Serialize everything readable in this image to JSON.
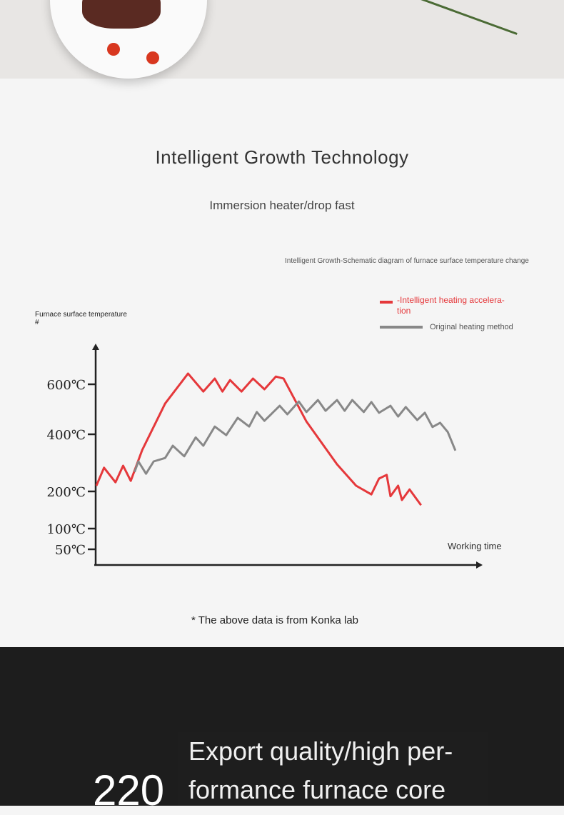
{
  "header": {
    "title": "Intelligent Growth Technology",
    "subtitle": "Immersion heater/drop fast"
  },
  "chart_data": {
    "type": "line",
    "title": "Intelligent Growth-Schematic diagram of furnace surface temperature change",
    "ylabel": "Furnace surface temperature\n#",
    "xlabel": "Working time",
    "y_ticks": [
      {
        "v": 600,
        "label": "600℃"
      },
      {
        "v": 400,
        "label": "400℃"
      },
      {
        "v": 200,
        "label": "200℃"
      },
      {
        "v": 100,
        "label": "100℃"
      },
      {
        "v": 50,
        "label": "50℃"
      }
    ],
    "legend_position": "top-right",
    "grid": false,
    "series": [
      {
        "name": "-Intelligent heating accelera-tion",
        "color": "#e5383b",
        "x": [
          0,
          2,
          5,
          7,
          9,
          12,
          18,
          24,
          28,
          31,
          33,
          35,
          38,
          41,
          44,
          47,
          49,
          55,
          63,
          68,
          72,
          74,
          76,
          77,
          79,
          80,
          82,
          85
        ],
        "y": [
          220,
          283,
          232,
          290,
          237,
          345,
          523,
          643,
          571,
          623,
          571,
          617,
          571,
          623,
          580,
          631,
          623,
          451,
          295,
          220,
          192,
          245,
          258,
          187,
          220,
          177,
          207,
          163
        ]
      },
      {
        "name": "Original heating method",
        "color": "#888888",
        "x": [
          10,
          11,
          13,
          15,
          18,
          20,
          23,
          26,
          28,
          31,
          34,
          37,
          40,
          42,
          44,
          48,
          50,
          53,
          55,
          58,
          60,
          63,
          65,
          67,
          70,
          72,
          74,
          77,
          79,
          81,
          84,
          86,
          88,
          90,
          92,
          94
        ],
        "y": [
          268,
          305,
          262,
          305,
          317,
          360,
          323,
          389,
          360,
          431,
          397,
          466,
          431,
          489,
          454,
          514,
          480,
          531,
          489,
          537,
          494,
          537,
          494,
          537,
          489,
          529,
          486,
          514,
          471,
          509,
          457,
          486,
          429,
          446,
          409,
          343
        ]
      }
    ]
  },
  "footnote": "* The above data is from Konka lab",
  "banner": {
    "number": "220",
    "headline": "Export quality/high per-formance furnace core",
    "headline_line1": "Export quality/high per-",
    "headline_line2": "formance furnace core"
  }
}
